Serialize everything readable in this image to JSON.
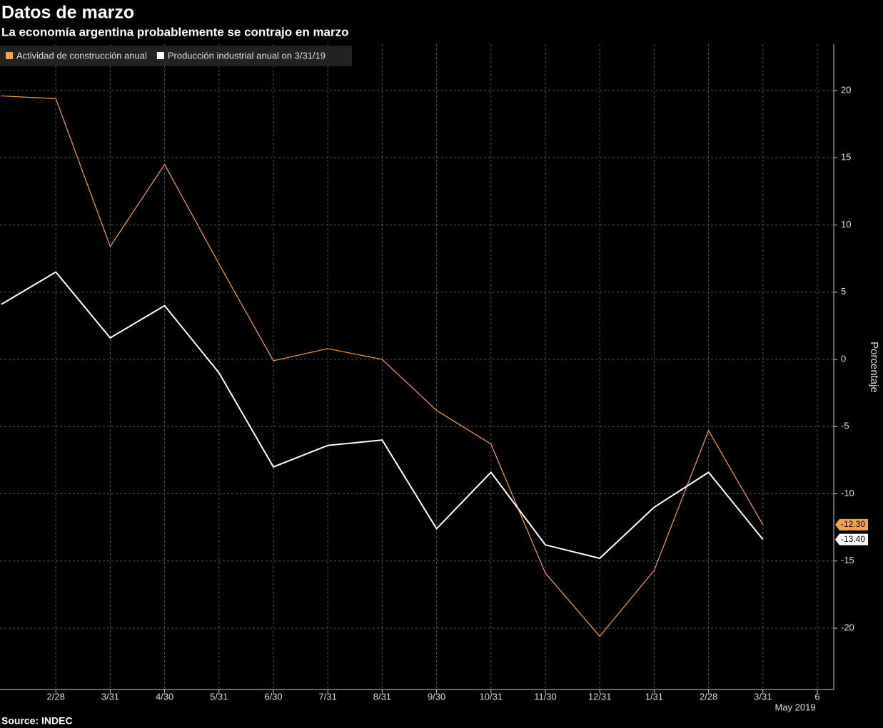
{
  "chart_data": {
    "type": "line",
    "title": "Datos de marzo",
    "subtitle": "La economía argentina probablemente se contrajo en marzo",
    "source": "Source: INDEC",
    "y_label": "Porcentaje",
    "x_annotation": "May 2019",
    "categories": [
      null,
      "2/28",
      "3/31",
      "4/30",
      "5/31",
      "6/30",
      "7/31",
      "8/31",
      "9/30",
      "10/31",
      "11/30",
      "12/31",
      "1/31",
      "2/28",
      "3/31",
      "6"
    ],
    "series": [
      {
        "name": "Actividad de construcción anual",
        "color": "#f6a04d",
        "values": [
          19.6,
          19.4,
          8.4,
          14.5,
          7.1,
          -0.1,
          0.8,
          0.0,
          -3.8,
          -6.3,
          -15.9,
          -20.6,
          -15.7,
          -5.3,
          -12.3,
          null
        ],
        "value_labels": [
          null,
          null,
          null,
          null,
          null,
          null,
          null,
          null,
          null,
          null,
          null,
          null,
          null,
          null,
          "-12.30",
          null
        ]
      },
      {
        "name": "Producción industrial anual on 3/31/19",
        "color": "#ffffff",
        "values": [
          4.1,
          6.5,
          1.6,
          4.0,
          -1.0,
          -8.0,
          -6.4,
          -6.0,
          -12.6,
          -8.4,
          -13.8,
          -14.8,
          -11.0,
          -8.4,
          -13.4,
          null
        ],
        "value_labels": [
          null,
          null,
          null,
          null,
          null,
          null,
          null,
          null,
          null,
          null,
          null,
          null,
          null,
          null,
          "-13.40",
          null
        ]
      }
    ],
    "ylim": [
      -24.56,
      23.45
    ],
    "yticks": [
      20,
      15,
      10,
      5,
      0,
      -5,
      -10,
      -15,
      -20
    ],
    "grid": true,
    "legend": "top-left"
  }
}
